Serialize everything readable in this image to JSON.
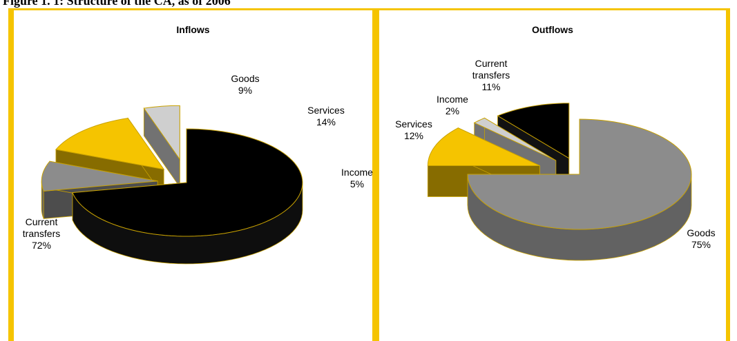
{
  "figure_title": "Figure 1. 1: Structure of the CA, as of 2006",
  "colors": {
    "frame": "#f5c400",
    "goods": "#8c8c8c",
    "services": "#f5c400",
    "income": "#cfcfcf",
    "current_transfers": "#000000"
  },
  "chart_data": [
    {
      "type": "pie",
      "title": "Inflows",
      "style": "3d-exploded",
      "slices": [
        {
          "label": "Current transfers",
          "value": 72,
          "display": "72%"
        },
        {
          "label": "Goods",
          "value": 9,
          "display": "9%"
        },
        {
          "label": "Services",
          "value": 14,
          "display": "14%"
        },
        {
          "label": "Income",
          "value": 5,
          "display": "5%"
        }
      ]
    },
    {
      "type": "pie",
      "title": "Outflows",
      "style": "3d-exploded",
      "slices": [
        {
          "label": "Goods",
          "value": 75,
          "display": "75%"
        },
        {
          "label": "Services",
          "value": 12,
          "display": "12%"
        },
        {
          "label": "Income",
          "value": 2,
          "display": "2%"
        },
        {
          "label": "Current transfers",
          "value": 11,
          "display": "11%"
        }
      ]
    }
  ]
}
